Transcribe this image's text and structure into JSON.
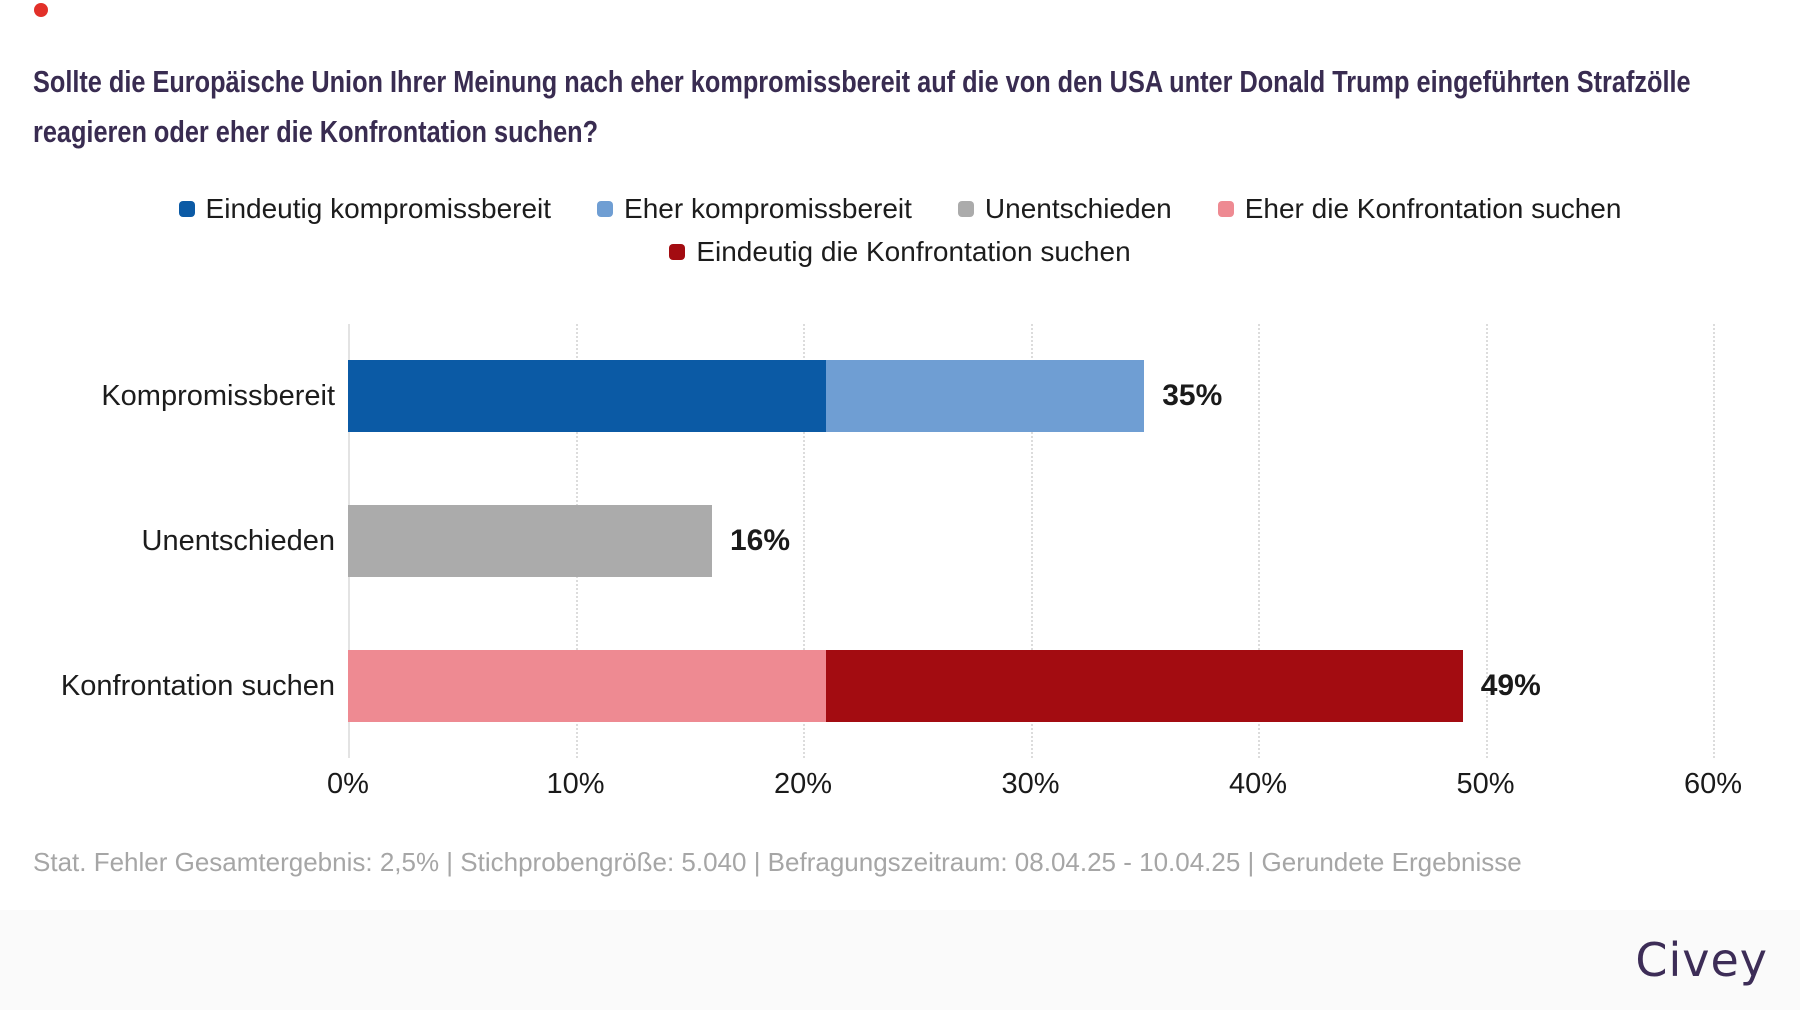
{
  "page": {
    "record_dot_color": "#e23029"
  },
  "title": {
    "text": "Sollte die Europäische Union Ihrer Meinung nach eher kompromissbereit auf die von den USA unter Donald Trump eingeführten Strafzölle reagieren oder eher die Konfrontation suchen?",
    "color": "#392c51"
  },
  "legend": {
    "items": [
      {
        "label": "Eindeutig kompromissbereit",
        "color": "#0b5aa5"
      },
      {
        "label": "Eher kompromissbereit",
        "color": "#6f9ed3"
      },
      {
        "label": "Unentschieden",
        "color": "#ababab"
      },
      {
        "label": "Eher die Konfrontation suchen",
        "color": "#ee8a92"
      },
      {
        "label": "Eindeutig die Konfrontation suchen",
        "color": "#a30c11"
      }
    ]
  },
  "chart_data": {
    "type": "bar",
    "orientation": "horizontal",
    "stacked": true,
    "grid": "vertical dotted gridlines",
    "xlim": [
      0,
      60
    ],
    "xlabel_ticks": [
      "0%",
      "10%",
      "20%",
      "30%",
      "40%",
      "50%",
      "60%"
    ],
    "categories": [
      "Kompromissbereit",
      "Unentschieden",
      "Konfrontation suchen"
    ],
    "series": [
      {
        "name": "Eindeutig kompromissbereit",
        "color": "#0b5aa5",
        "values": [
          21,
          0,
          0
        ]
      },
      {
        "name": "Eher kompromissbereit",
        "color": "#6f9ed3",
        "values": [
          14,
          0,
          0
        ]
      },
      {
        "name": "Unentschieden",
        "color": "#ababab",
        "values": [
          0,
          16,
          0
        ]
      },
      {
        "name": "Eher die Konfrontation suchen",
        "color": "#ee8a92",
        "values": [
          0,
          0,
          21
        ]
      },
      {
        "name": "Eindeutig die Konfrontation suchen",
        "color": "#a30c11",
        "values": [
          0,
          0,
          28
        ]
      }
    ],
    "totals": [
      "35%",
      "16%",
      "49%"
    ],
    "totals_numeric": [
      35,
      16,
      49
    ]
  },
  "footer": {
    "text": "Stat. Fehler Gesamtergebnis: 2,5% | Stichprobengröße: 5.040 | Befragungszeitraum: 08.04.25 - 10.04.25 | Gerundete Ergebnisse",
    "color": "#a6a6a6"
  },
  "branding": {
    "logo_text": "Civey",
    "color": "#3d2d57",
    "bar_background": "#fafafa"
  }
}
